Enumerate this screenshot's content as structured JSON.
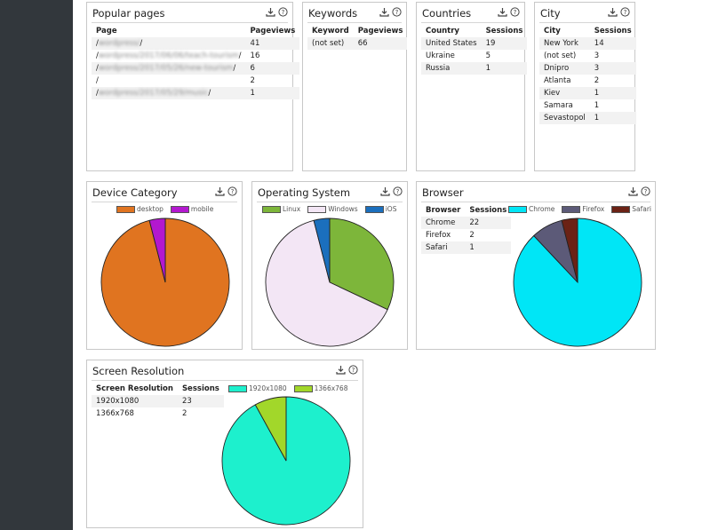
{
  "colors": {
    "sidebar": "#32373c"
  },
  "popular_pages": {
    "title": "Popular pages",
    "columns": [
      "Page",
      "Pageviews"
    ],
    "rows": [
      {
        "prefix": "/",
        "masked": "wordpress/",
        "suffix": "/",
        "value": "41"
      },
      {
        "prefix": "/",
        "masked": "wordpress/2017/06/06/teach-tourism",
        "suffix": "/",
        "value": "16"
      },
      {
        "prefix": "/",
        "masked": "wordpress/2017/05/26/new-tourism",
        "suffix": "/",
        "value": "6"
      },
      {
        "prefix": "/",
        "masked": "",
        "suffix": "",
        "value": "2"
      },
      {
        "prefix": "/",
        "masked": "wordpress/2017/05/29/music",
        "suffix": "/",
        "value": "1"
      }
    ]
  },
  "keywords": {
    "title": "Keywords",
    "columns": [
      "Keyword",
      "Pageviews"
    ],
    "rows": [
      [
        "(not set)",
        "66"
      ]
    ]
  },
  "countries": {
    "title": "Countries",
    "columns": [
      "Country",
      "Sessions"
    ],
    "rows": [
      [
        "United States",
        "19"
      ],
      [
        "Ukraine",
        "5"
      ],
      [
        "Russia",
        "1"
      ]
    ]
  },
  "city": {
    "title": "City",
    "columns": [
      "City",
      "Sessions"
    ],
    "rows": [
      [
        "New York",
        "14"
      ],
      [
        "(not set)",
        "3"
      ],
      [
        "Dnipro",
        "3"
      ],
      [
        "Atlanta",
        "2"
      ],
      [
        "Kiev",
        "1"
      ],
      [
        "Samara",
        "1"
      ],
      [
        "Sevastopol",
        "1"
      ]
    ]
  },
  "device": {
    "title": "Device Category",
    "chart_data": {
      "type": "pie",
      "title": "Device Category",
      "legend_position": "top",
      "series": [
        {
          "name": "desktop",
          "value": 24,
          "color": "#e07420"
        },
        {
          "name": "mobile",
          "value": 1,
          "color": "#b318cf"
        }
      ]
    }
  },
  "os": {
    "title": "Operating System",
    "chart_data": {
      "type": "pie",
      "title": "Operating System",
      "legend_position": "top",
      "series": [
        {
          "name": "Linux",
          "value": 8,
          "color": "#7db63a"
        },
        {
          "name": "Windows",
          "value": 16,
          "color": "#f3e6f5"
        },
        {
          "name": "iOS",
          "value": 1,
          "color": "#1b6fbd"
        }
      ]
    }
  },
  "browser": {
    "title": "Browser",
    "columns": [
      "Browser",
      "Sessions"
    ],
    "rows": [
      [
        "Chrome",
        "22"
      ],
      [
        "Firefox",
        "2"
      ],
      [
        "Safari",
        "1"
      ]
    ],
    "chart_data": {
      "type": "pie",
      "title": "Browser",
      "legend_position": "top",
      "series": [
        {
          "name": "Chrome",
          "value": 22,
          "color": "#00e6f6"
        },
        {
          "name": "Firefox",
          "value": 2,
          "color": "#5c5a78"
        },
        {
          "name": "Safari",
          "value": 1,
          "color": "#6b2215"
        }
      ]
    }
  },
  "screen": {
    "title": "Screen Resolution",
    "columns": [
      "Screen Resolution",
      "Sessions"
    ],
    "rows": [
      [
        "1920x1080",
        "23"
      ],
      [
        "1366x768",
        "2"
      ]
    ],
    "chart_data": {
      "type": "pie",
      "title": "Screen Resolution",
      "legend_position": "top",
      "series": [
        {
          "name": "1920x1080",
          "value": 23,
          "color": "#1df0cd"
        },
        {
          "name": "1366x768",
          "value": 2,
          "color": "#a2d72a"
        }
      ]
    }
  }
}
